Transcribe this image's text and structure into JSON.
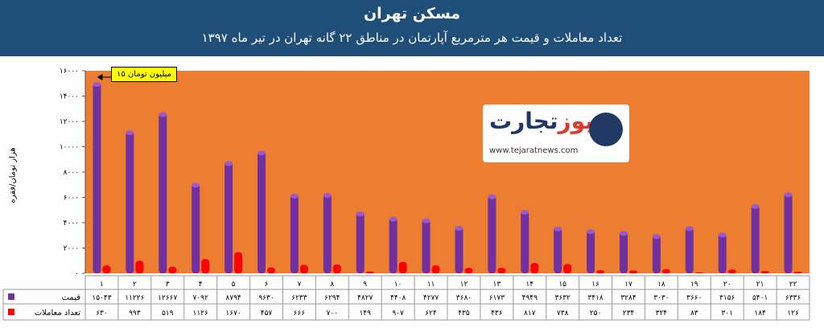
{
  "header": {
    "title": "مسکن تهران",
    "subtitle": "تعداد معاملات و قیمت هر مترمربع آپارتمان در مناطق ۲۲ گانه تهران در تیر ماه ۱۳۹۷"
  },
  "logo": {
    "brand_main": "تجارت",
    "brand_accent": "نیوز",
    "url": "www.tejaratnews.com"
  },
  "annotation": "۱۵ میلیون تومان",
  "colors": {
    "banner": "#1f4e79",
    "plot_bg": "#ed7d31",
    "price": "#7030a0",
    "transactions": "#ff0000"
  },
  "chart_data": {
    "type": "bar",
    "ylabel": "هزار تومان/فقره",
    "ylim": [
      0,
      16000
    ],
    "yticks": [
      "۰",
      "۲۰۰۰",
      "۴۰۰۰",
      "۶۰۰۰",
      "۸۰۰۰",
      "۱۰۰۰۰",
      "۱۲۰۰۰",
      "۱۴۰۰۰",
      "۱۶۰۰۰"
    ],
    "categories": [
      "۱",
      "۲",
      "۳",
      "۴",
      "۵",
      "۶",
      "۷",
      "۸",
      "۹",
      "۱۰",
      "۱۱",
      "۱۲",
      "۱۳",
      "۱۴",
      "۱۵",
      "۱۶",
      "۱۷",
      "۱۸",
      "۱۹",
      "۲۰",
      "۲۱",
      "۲۲"
    ],
    "series": [
      {
        "name": "قیمت",
        "values": [
          15043,
          11226,
          12667,
          7092,
          8794,
          9630,
          6233,
          6294,
          4827,
          4408,
          4277,
          3680,
          6173,
          4949,
          3632,
          3418,
          3284,
          3030,
          3660,
          3156,
          5401,
          6336
        ],
        "labels": [
          "۱۵۰۴۳",
          "۱۱۲۲۶",
          "۱۲۶۶۷",
          "۷۰۹۲",
          "۸۷۹۴",
          "۹۶۳۰",
          "۶۲۳۳",
          "۶۲۹۴",
          "۴۸۲۷",
          "۴۴۰۸",
          "۴۲۷۷",
          "۳۶۸۰",
          "۶۱۷۳",
          "۴۹۴۹",
          "۳۶۳۲",
          "۳۴۱۸",
          "۳۲۸۴",
          "۳۰۳۰",
          "۳۶۶۰",
          "۳۱۵۶",
          "۵۴۰۱",
          "۶۳۳۶"
        ]
      },
      {
        "name": "تعداد معاملات",
        "values": [
          630,
          993,
          519,
          1126,
          1670,
          457,
          666,
          700,
          149,
          907,
          624,
          435,
          436,
          817,
          738,
          250,
          234,
          324,
          83,
          301,
          184,
          126
        ],
        "labels": [
          "۶۳۰",
          "۹۹۳",
          "۵۱۹",
          "۱۱۲۶",
          "۱۶۷۰",
          "۴۵۷",
          "۶۶۶",
          "۷۰۰",
          "۱۴۹",
          "۹۰۷",
          "۶۲۴",
          "۴۳۵",
          "۴۳۶",
          "۸۱۷",
          "۷۳۸",
          "۲۵۰",
          "۲۳۴",
          "۳۲۴",
          "۸۳",
          "۳۰۱",
          "۱۸۴",
          "۱۲۶"
        ]
      }
    ]
  }
}
